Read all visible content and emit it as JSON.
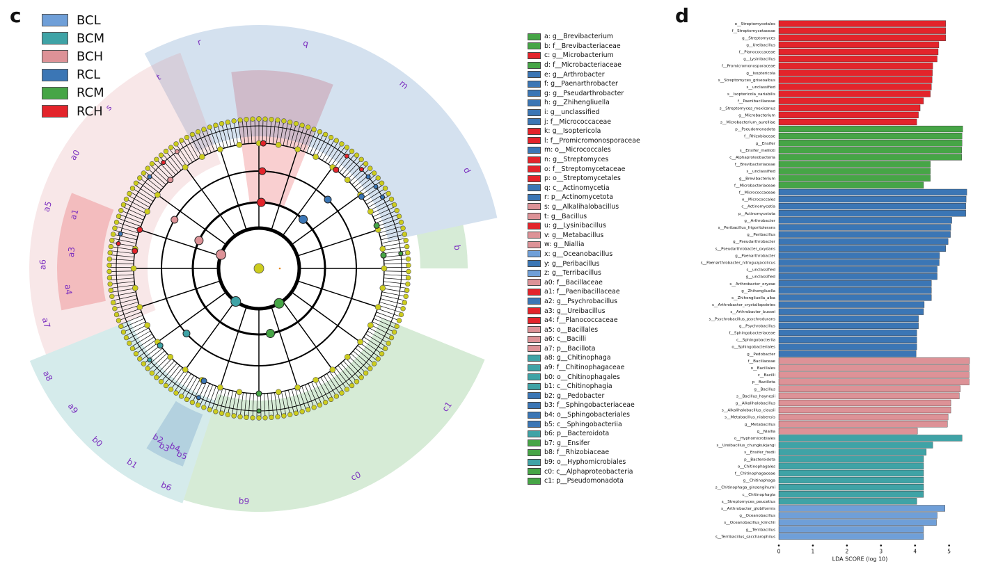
{
  "panels": {
    "c_letter": "c",
    "d_letter": "d"
  },
  "groups": [
    {
      "name": "BCL",
      "color": "#6f9fd8"
    },
    {
      "name": "BCM",
      "color": "#3fa3a6"
    },
    {
      "name": "BCH",
      "color": "#dd9297"
    },
    {
      "name": "RCL",
      "color": "#3b76b5"
    },
    {
      "name": "RCM",
      "color": "#46a546"
    },
    {
      "name": "RCH",
      "color": "#e3242b"
    }
  ],
  "clade_legend": [
    {
      "label": "a: g__Brevibacterium",
      "group": "RCM"
    },
    {
      "label": "b: f__Brevibacteriaceae",
      "group": "RCM"
    },
    {
      "label": "c: g__Microbacterium",
      "group": "RCH"
    },
    {
      "label": "d: f__Microbacteriaceae",
      "group": "RCM"
    },
    {
      "label": "e: g__Arthrobacter",
      "group": "RCL"
    },
    {
      "label": "f: g__Paenarthrobacter",
      "group": "RCL"
    },
    {
      "label": "g: g__Pseudarthrobacter",
      "group": "RCL"
    },
    {
      "label": "h: g__Zhihengliuella",
      "group": "RCL"
    },
    {
      "label": "i: g__unclassified",
      "group": "RCL"
    },
    {
      "label": "j: f__Micrococcaceae",
      "group": "RCL"
    },
    {
      "label": "k: g__Isoptericola",
      "group": "RCH"
    },
    {
      "label": "l: f__Promicromonosporaceae",
      "group": "RCH"
    },
    {
      "label": "m: o__Micrococcales",
      "group": "RCL"
    },
    {
      "label": "n: g__Streptomyces",
      "group": "RCH"
    },
    {
      "label": "o: f__Streptomycetaceae",
      "group": "RCH"
    },
    {
      "label": "p: o__Streptomycetales",
      "group": "RCH"
    },
    {
      "label": "q: c__Actinomycetia",
      "group": "RCL"
    },
    {
      "label": "r: p__Actinomycetota",
      "group": "RCL"
    },
    {
      "label": "s: g__Alkalihalobacillus",
      "group": "BCH"
    },
    {
      "label": "t: g__Bacillus",
      "group": "BCH"
    },
    {
      "label": "u: g__Lysinibacillus",
      "group": "RCH"
    },
    {
      "label": "v: g__Metabacillus",
      "group": "BCH"
    },
    {
      "label": "w: g__Niallia",
      "group": "BCH"
    },
    {
      "label": "x: g__Oceanobacillus",
      "group": "BCL"
    },
    {
      "label": "y: g__Peribacillus",
      "group": "RCL"
    },
    {
      "label": "z: g__Terribacillus",
      "group": "BCL"
    },
    {
      "label": "a0: f__Bacillaceae",
      "group": "BCH"
    },
    {
      "label": "a1: f__Paenibacillaceae",
      "group": "RCH"
    },
    {
      "label": "a2: g__Psychrobacillus",
      "group": "RCL"
    },
    {
      "label": "a3: g__Ureibacillus",
      "group": "RCH"
    },
    {
      "label": "a4: f__Planococcaceae",
      "group": "RCH"
    },
    {
      "label": "a5: o__Bacillales",
      "group": "BCH"
    },
    {
      "label": "a6: c__Bacilli",
      "group": "BCH"
    },
    {
      "label": "a7: p__Bacillota",
      "group": "BCH"
    },
    {
      "label": "a8: g__Chitinophaga",
      "group": "BCM"
    },
    {
      "label": "a9: f__Chitinophagaceae",
      "group": "BCM"
    },
    {
      "label": "b0: o__Chitinophagales",
      "group": "BCM"
    },
    {
      "label": "b1: c__Chitinophagia",
      "group": "BCM"
    },
    {
      "label": "b2: g__Pedobacter",
      "group": "RCL"
    },
    {
      "label": "b3: f__Sphingobacteriaceae",
      "group": "RCL"
    },
    {
      "label": "b4: o__Sphingobacteriales",
      "group": "RCL"
    },
    {
      "label": "b5: c__Sphingobacteriia",
      "group": "RCL"
    },
    {
      "label": "b6: p__Bacteroidota",
      "group": "BCM"
    },
    {
      "label": "b7: g__Ensifer",
      "group": "RCM"
    },
    {
      "label": "b8: f__Rhizobiaceae",
      "group": "RCM"
    },
    {
      "label": "b9: o__Hyphomicrobiales",
      "group": "BCM"
    },
    {
      "label": "c0: c__Alphaproteobacteria",
      "group": "RCM"
    },
    {
      "label": "c1: p__Pseudomonadota",
      "group": "RCM"
    }
  ],
  "cladogram": {
    "sectors": [
      {
        "group": "RCH",
        "start": -8,
        "end": 22,
        "inner": 95,
        "outer": 285,
        "labels": []
      },
      {
        "group": "RCL",
        "start": -28,
        "end": 78,
        "inner": 190,
        "outer": 350,
        "labels": [
          "r",
          "q",
          "m",
          "d"
        ]
      },
      {
        "group": "RCM",
        "start": 78,
        "end": 90,
        "inner": 232,
        "outer": 300,
        "labels": [
          "b"
        ]
      },
      {
        "group": "RCM",
        "start": 112,
        "end": 198,
        "inner": 190,
        "outer": 350,
        "labels": [
          "c1",
          "c0",
          "b9"
        ]
      },
      {
        "group": "BCM",
        "start": 198,
        "end": 248,
        "inner": 200,
        "outer": 355,
        "labels": [
          "b6",
          "b1",
          "b0",
          "a9",
          "a8"
        ]
      },
      {
        "group": "RCL",
        "start": 201,
        "end": 212,
        "inner": 225,
        "outer": 305,
        "labels": [
          "b5",
          "b4",
          "b3",
          "b2"
        ]
      },
      {
        "group": "BCH",
        "start": 248,
        "end": 340,
        "inner": 160,
        "outer": 330,
        "labels": [
          "a7",
          "a6",
          "a5",
          "a0",
          "s",
          "t"
        ]
      },
      {
        "group": "RCH",
        "start": 258,
        "end": 292,
        "inner": 225,
        "outer": 290,
        "labels": [
          "a4",
          "a3",
          "a1"
        ]
      }
    ],
    "markers": [
      {
        "label": "p",
        "group": "RCH",
        "depth": 2,
        "angle": 2
      },
      {
        "label": "o",
        "group": "RCH",
        "depth": 3,
        "angle": 2
      },
      {
        "label": "n",
        "group": "RCH",
        "depth": 4,
        "angle": 2
      },
      {
        "label": "l",
        "group": "RCH",
        "depth": 4,
        "angle": 38
      },
      {
        "label": "k",
        "group": "RCH",
        "depth": 5,
        "angle": 38
      },
      {
        "label": "c",
        "group": "RCH",
        "depth": 5,
        "angle": 46
      },
      {
        "label": "j",
        "group": "RCL",
        "depth": 4,
        "angle": 55
      },
      {
        "label": "e",
        "group": "RCL",
        "depth": 5,
        "angle": 50
      },
      {
        "label": "f",
        "group": "RCL",
        "depth": 5,
        "angle": 55
      },
      {
        "label": "g",
        "group": "RCL",
        "depth": 5,
        "angle": 60
      },
      {
        "label": "m",
        "group": "RCL",
        "depth": 3,
        "angle": 45
      },
      {
        "label": "q",
        "group": "RCL",
        "depth": 2,
        "angle": 42
      },
      {
        "label": "d",
        "group": "RCM",
        "depth": 4,
        "angle": 70
      },
      {
        "label": "b",
        "group": "RCM",
        "depth": 4,
        "angle": 84
      },
      {
        "label": "a",
        "group": "RCM",
        "depth": 5,
        "angle": 84
      },
      {
        "label": "c1",
        "group": "RCM",
        "depth": 1,
        "angle": 150
      },
      {
        "label": "c0",
        "group": "RCM",
        "depth": 2,
        "angle": 170
      },
      {
        "label": "b8",
        "group": "RCM",
        "depth": 4,
        "angle": 180
      },
      {
        "label": "b7",
        "group": "RCM",
        "depth": 5,
        "angle": 180
      },
      {
        "label": "b6",
        "group": "BCM",
        "depth": 1,
        "angle": 215
      },
      {
        "label": "a8",
        "group": "BCM",
        "depth": 5,
        "angle": 230
      },
      {
        "label": "a9",
        "group": "BCM",
        "depth": 4,
        "angle": 232
      },
      {
        "label": "b0",
        "group": "BCM",
        "depth": 3,
        "angle": 228
      },
      {
        "label": "b2",
        "group": "RCL",
        "depth": 5,
        "angle": 205
      },
      {
        "label": "b3",
        "group": "RCL",
        "depth": 4,
        "angle": 206
      },
      {
        "label": "a7",
        "group": "BCH",
        "depth": 1,
        "angle": 290
      },
      {
        "label": "a6",
        "group": "BCH",
        "depth": 2,
        "angle": 295
      },
      {
        "label": "a5",
        "group": "BCH",
        "depth": 3,
        "angle": 300
      },
      {
        "label": "a0",
        "group": "BCH",
        "depth": 4,
        "angle": 315
      },
      {
        "label": "t",
        "group": "BCH",
        "depth": 5,
        "angle": 325
      },
      {
        "label": "a4",
        "group": "RCH",
        "depth": 4,
        "angle": 278
      },
      {
        "label": "a3",
        "group": "RCH",
        "depth": 5,
        "angle": 280
      },
      {
        "label": "a1",
        "group": "RCH",
        "depth": 4,
        "angle": 288
      },
      {
        "label": "u",
        "group": "RCH",
        "depth": 5,
        "angle": 318
      },
      {
        "label": "a2",
        "group": "RCL",
        "depth": 5,
        "angle": 284
      },
      {
        "label": "y",
        "group": "RCL",
        "depth": 5,
        "angle": 310
      }
    ]
  },
  "chart_data": {
    "type": "bar",
    "orientation": "horizontal",
    "xlabel": "LDA SCORE (log 10)",
    "xticks": [
      0,
      1,
      2,
      3,
      4,
      5
    ],
    "xlim": [
      0,
      5.6
    ],
    "bars": [
      {
        "label": "o__Streptomycetales",
        "value": 4.9,
        "group": "RCH"
      },
      {
        "label": "f__Streptomycetaceae",
        "value": 4.9,
        "group": "RCH"
      },
      {
        "label": "g__Streptomyces",
        "value": 4.9,
        "group": "RCH"
      },
      {
        "label": "g__Ureibacillus",
        "value": 4.7,
        "group": "RCH"
      },
      {
        "label": "f__Planococcaceae",
        "value": 4.68,
        "group": "RCH"
      },
      {
        "label": "g__Lysinibacillus",
        "value": 4.65,
        "group": "RCH"
      },
      {
        "label": "f__Promicromonosporaceae",
        "value": 4.52,
        "group": "RCH"
      },
      {
        "label": "g__Isoptericola",
        "value": 4.51,
        "group": "RCH"
      },
      {
        "label": "s__Streptomyces_griseoalbus",
        "value": 4.5,
        "group": "RCH"
      },
      {
        "label": "s__unclassified",
        "value": 4.48,
        "group": "RCH"
      },
      {
        "label": "s__Isoptericola_variabilis",
        "value": 4.45,
        "group": "RCH"
      },
      {
        "label": "f__Paenibacillaceae",
        "value": 4.25,
        "group": "RCH"
      },
      {
        "label": "s__Streptomyces_mexicanus",
        "value": 4.15,
        "group": "RCH"
      },
      {
        "label": "g__Microbacterium",
        "value": 4.1,
        "group": "RCH"
      },
      {
        "label": "s__Microbacterium_aurelliae",
        "value": 4.05,
        "group": "RCH"
      },
      {
        "label": "p__Pseudomonadota",
        "value": 5.4,
        "group": "RCM"
      },
      {
        "label": "f__Rhizobiaceae",
        "value": 5.38,
        "group": "RCM"
      },
      {
        "label": "g__Ensifer",
        "value": 5.38,
        "group": "RCM"
      },
      {
        "label": "s__Ensifer_meliloti",
        "value": 5.37,
        "group": "RCM"
      },
      {
        "label": "c__Alphaproteobacteria",
        "value": 5.37,
        "group": "RCM"
      },
      {
        "label": "f__Brevibacteriaceae",
        "value": 4.45,
        "group": "RCM"
      },
      {
        "label": "s__unclassified",
        "value": 4.45,
        "group": "RCM"
      },
      {
        "label": "g__Brevibacterium",
        "value": 4.45,
        "group": "RCM"
      },
      {
        "label": "f__Microbacteriaceae",
        "value": 4.25,
        "group": "RCM"
      },
      {
        "label": "f__Micrococcaceae",
        "value": 5.52,
        "group": "RCL"
      },
      {
        "label": "o__Micrococcales",
        "value": 5.5,
        "group": "RCL"
      },
      {
        "label": "c__Actinomycetia",
        "value": 5.49,
        "group": "RCL"
      },
      {
        "label": "p__Actinomycetota",
        "value": 5.49,
        "group": "RCL"
      },
      {
        "label": "g__Arthrobacter",
        "value": 5.08,
        "group": "RCL"
      },
      {
        "label": "s__Peribacillus_frigoritolerans",
        "value": 5.05,
        "group": "RCL"
      },
      {
        "label": "g__Peribacillus",
        "value": 5.04,
        "group": "RCL"
      },
      {
        "label": "g__Pseudarthrobacter",
        "value": 4.97,
        "group": "RCL"
      },
      {
        "label": "s__Pseudarthrobacter_oxydans",
        "value": 4.9,
        "group": "RCL"
      },
      {
        "label": "g__Paenarthrobacter",
        "value": 4.72,
        "group": "RCL"
      },
      {
        "label": "s__Paenarthrobacter_nitroguajacolicus",
        "value": 4.71,
        "group": "RCL"
      },
      {
        "label": "s__unclassified",
        "value": 4.65,
        "group": "RCL"
      },
      {
        "label": "g__unclassified",
        "value": 4.65,
        "group": "RCL"
      },
      {
        "label": "s__Arthrobacter_oryzae",
        "value": 4.48,
        "group": "RCL"
      },
      {
        "label": "g__Zhihengliuella",
        "value": 4.48,
        "group": "RCL"
      },
      {
        "label": "s__Zhihengliuella_alba",
        "value": 4.48,
        "group": "RCL"
      },
      {
        "label": "s__Arthrobacter_crystallopoietes",
        "value": 4.27,
        "group": "RCL"
      },
      {
        "label": "s__Arthrobacter_bussei",
        "value": 4.25,
        "group": "RCL"
      },
      {
        "label": "s__Psychrobacillus_psychrodurans",
        "value": 4.1,
        "group": "RCL"
      },
      {
        "label": "g__Psychrobacillus",
        "value": 4.1,
        "group": "RCL"
      },
      {
        "label": "f__Sphingobacteriaceae",
        "value": 4.05,
        "group": "RCL"
      },
      {
        "label": "c__Sphingobacteriia",
        "value": 4.05,
        "group": "RCL"
      },
      {
        "label": "o__Sphingobacteriales",
        "value": 4.05,
        "group": "RCL"
      },
      {
        "label": "g__Pedobacter",
        "value": 4.03,
        "group": "RCL"
      },
      {
        "label": "f__Bacillaceae",
        "value": 5.6,
        "group": "BCH"
      },
      {
        "label": "o__Bacillales",
        "value": 5.59,
        "group": "BCH"
      },
      {
        "label": "c__Bacilli",
        "value": 5.59,
        "group": "BCH"
      },
      {
        "label": "p__Bacillota",
        "value": 5.59,
        "group": "BCH"
      },
      {
        "label": "g__Bacillus",
        "value": 5.33,
        "group": "BCH"
      },
      {
        "label": "s__Bacillus_haynesii",
        "value": 5.3,
        "group": "BCH"
      },
      {
        "label": "g__Alkalihalobacillus",
        "value": 5.05,
        "group": "BCH"
      },
      {
        "label": "s__Alkalihalobacillus_clausii",
        "value": 5.05,
        "group": "BCH"
      },
      {
        "label": "s__Metabacillus_niabensis",
        "value": 4.97,
        "group": "BCH"
      },
      {
        "label": "g__Metabacillus",
        "value": 4.95,
        "group": "BCH"
      },
      {
        "label": "g__Niallia",
        "value": 4.07,
        "group": "BCH"
      },
      {
        "label": "o__Hyphomicrobiales",
        "value": 5.38,
        "group": "BCM"
      },
      {
        "label": "s__Ureibacillus_chungkukjangi",
        "value": 4.52,
        "group": "BCM"
      },
      {
        "label": "s__Ensifer_fredii",
        "value": 4.33,
        "group": "BCM"
      },
      {
        "label": "p__Bacteroidota",
        "value": 4.25,
        "group": "BCM"
      },
      {
        "label": "o__Chitinophagales",
        "value": 4.25,
        "group": "BCM"
      },
      {
        "label": "f__Chitinophagaceae",
        "value": 4.25,
        "group": "BCM"
      },
      {
        "label": "g__Chitinophaga",
        "value": 4.25,
        "group": "BCM"
      },
      {
        "label": "s__Chitinophaga_ginsengihumi",
        "value": 4.25,
        "group": "BCM"
      },
      {
        "label": "c__Chitinophagia",
        "value": 4.25,
        "group": "BCM"
      },
      {
        "label": "s__Streptomyces_peucetius",
        "value": 4.05,
        "group": "BCM"
      },
      {
        "label": "s__Arthrobacter_globiformis",
        "value": 4.88,
        "group": "BCL"
      },
      {
        "label": "g__Oceanobacillus",
        "value": 4.65,
        "group": "BCL"
      },
      {
        "label": "s__Oceanobacillus_kimchii",
        "value": 4.63,
        "group": "BCL"
      },
      {
        "label": "g__Terribacillus",
        "value": 4.25,
        "group": "BCL"
      },
      {
        "label": "s__Terribacillus_saccharophilus",
        "value": 4.25,
        "group": "BCL"
      }
    ]
  }
}
